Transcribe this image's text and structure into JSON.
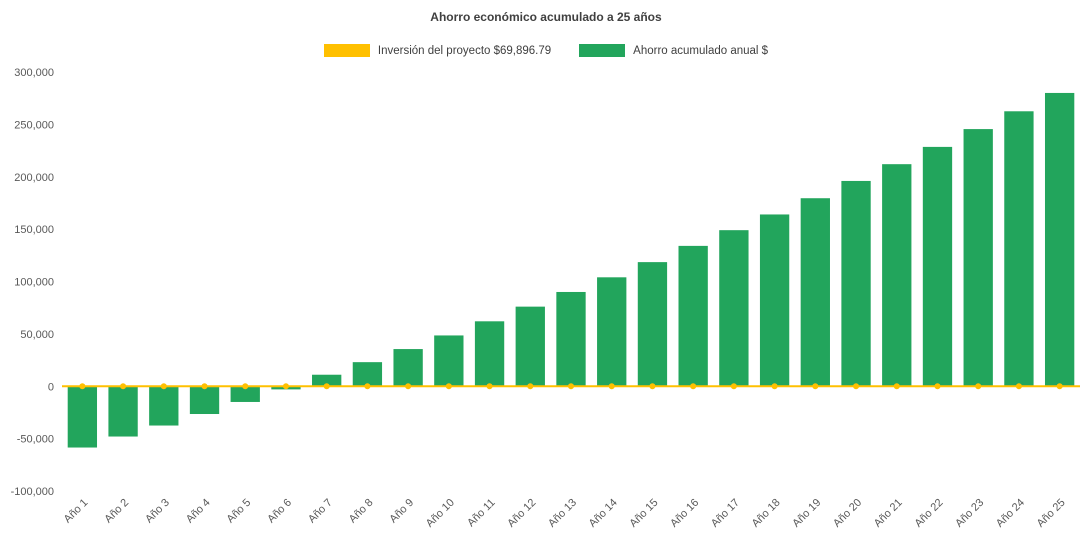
{
  "chart": {
    "title": "Ahorro económico acumulado a 25 años"
  },
  "chart_data": {
    "type": "bar",
    "title": "Ahorro económico acumulado a 25 años",
    "categories": [
      "Año 1",
      "Año 2",
      "Año 3",
      "Año 4",
      "Año 5",
      "Año 6",
      "Año 7",
      "Año 8",
      "Año 9",
      "Año 10",
      "Año 11",
      "Año 12",
      "Año 13",
      "Año 14",
      "Año 15",
      "Año 16",
      "Año 17",
      "Año 18",
      "Año 19",
      "Año 20",
      "Año 21",
      "Año 22",
      "Año 23",
      "Año 24",
      "Año 25"
    ],
    "series": [
      {
        "name": "Inversión del proyecto $69,896.79",
        "type": "line",
        "color": "#FFC000",
        "values": [
          0,
          0,
          0,
          0,
          0,
          0,
          0,
          0,
          0,
          0,
          0,
          0,
          0,
          0,
          0,
          0,
          0,
          0,
          0,
          0,
          0,
          0,
          0,
          0,
          0
        ]
      },
      {
        "name": "Ahorro acumulado anual $",
        "type": "bar",
        "color": "#22A55C",
        "values": [
          -58500,
          -48000,
          -37500,
          -26500,
          -15000,
          -3000,
          11000,
          23000,
          35500,
          48500,
          62000,
          76000,
          90000,
          104000,
          118500,
          134000,
          149000,
          164000,
          179500,
          196000,
          212000,
          228500,
          245500,
          262500,
          280000
        ]
      }
    ],
    "xlabel": "",
    "ylabel": "",
    "ylim": [
      -100000,
      300000
    ],
    "ytick_step": 50000,
    "grid": false,
    "legend_position": "top"
  }
}
